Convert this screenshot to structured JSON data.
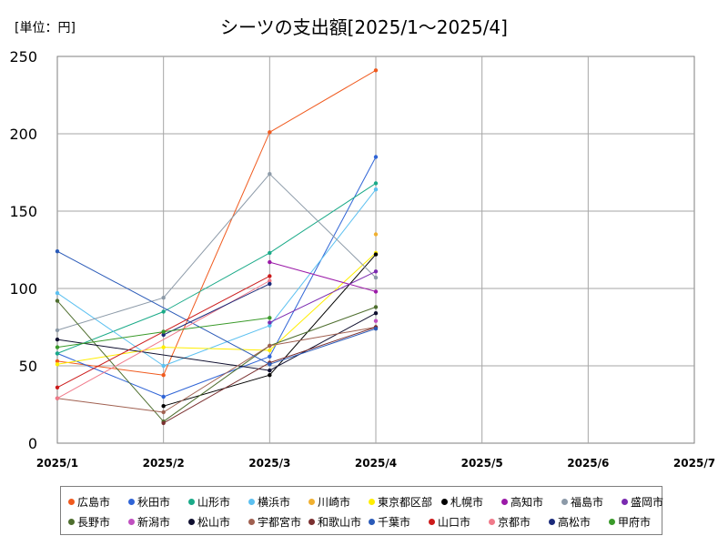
{
  "unit_label": "[単位：円]",
  "chart_data": {
    "type": "line",
    "title": "シーツの支出額[2025/1～2025/4]",
    "x_ticks": [
      "2025/1",
      "2025/2",
      "2025/3",
      "2025/4",
      "2025/5",
      "2025/6",
      "2025/7"
    ],
    "ylim": [
      0,
      250
    ],
    "y_ticks": [
      0,
      50,
      100,
      150,
      200,
      250
    ],
    "grid": true,
    "legend_position": "bottom",
    "series": [
      {
        "name": "広島市",
        "color": "#f05a1e",
        "values": [
          53,
          44,
          201,
          241
        ]
      },
      {
        "name": "秋田市",
        "color": "#2f64d6",
        "values": [
          58,
          30,
          56,
          185
        ]
      },
      {
        "name": "山形市",
        "color": "#1aaa88",
        "values": [
          58,
          85,
          123,
          168
        ]
      },
      {
        "name": "横浜市",
        "color": "#5cc0f0",
        "values": [
          97,
          50,
          76,
          164
        ]
      },
      {
        "name": "川崎市",
        "color": "#f0b030",
        "values": [
          null,
          null,
          null,
          135
        ]
      },
      {
        "name": "東京都区部",
        "color": "#ffee00",
        "values": [
          51,
          62,
          60,
          123
        ]
      },
      {
        "name": "札幌市",
        "color": "#000000",
        "values": [
          null,
          24,
          44,
          122
        ]
      },
      {
        "name": "高知市",
        "color": "#9b1aa8",
        "values": [
          null,
          null,
          117,
          98
        ]
      },
      {
        "name": "福島市",
        "color": "#8c9aa8",
        "values": [
          73,
          94,
          174,
          107
        ]
      },
      {
        "name": "盛岡市",
        "color": "#7a2ab0",
        "values": [
          null,
          null,
          78,
          111
        ]
      },
      {
        "name": "長野市",
        "color": "#4e6e2e",
        "values": [
          92,
          14,
          63,
          88
        ]
      },
      {
        "name": "新潟市",
        "color": "#c050c0",
        "values": [
          null,
          null,
          null,
          79
        ]
      },
      {
        "name": "松山市",
        "color": "#101030",
        "values": [
          67,
          null,
          47,
          84
        ]
      },
      {
        "name": "宇都宮市",
        "color": "#a06050",
        "values": [
          29,
          20,
          63,
          75
        ]
      },
      {
        "name": "和歌山市",
        "color": "#7a3030",
        "values": [
          null,
          13,
          52,
          75
        ]
      },
      {
        "name": "千葉市",
        "color": "#2a5ab8",
        "values": [
          124,
          null,
          51,
          74
        ]
      },
      {
        "name": "山口市",
        "color": "#cc1a1a",
        "values": [
          36,
          72,
          108,
          null
        ]
      },
      {
        "name": "京都市",
        "color": "#f07a8a",
        "values": [
          29,
          null,
          105,
          null
        ]
      },
      {
        "name": "高松市",
        "color": "#1a2a7a",
        "values": [
          null,
          70,
          103,
          null
        ]
      },
      {
        "name": "甲府市",
        "color": "#3a9a2a",
        "values": [
          62,
          72,
          81,
          null
        ]
      }
    ]
  }
}
